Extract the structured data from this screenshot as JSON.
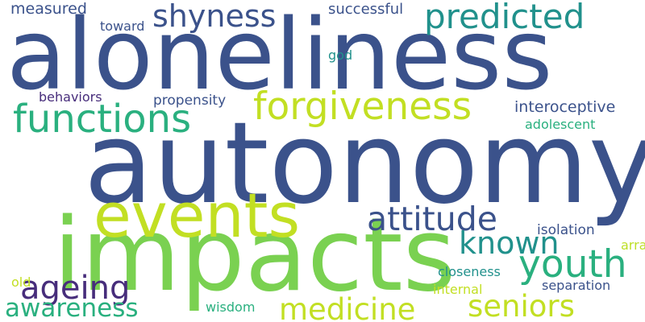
{
  "palette": {
    "indigo": "#3b528b",
    "purple": "#472d7b",
    "teal": "#21918c",
    "green": "#2ab07f",
    "lime": "#7ad151",
    "yellow": "#c2df23",
    "light_yellow": "#bddf26"
  },
  "words": {
    "aloneliness": "aloneliness",
    "autonomy": "autonomy",
    "impacts": "impacts",
    "events": "events",
    "forgiveness": "forgiveness",
    "functions": "functions",
    "predicted": "predicted",
    "shyness": "shyness",
    "attitude": "attitude",
    "youth": "youth",
    "known": "known",
    "ageing": "ageing",
    "medicine": "medicine",
    "seniors": "seniors",
    "awareness": "awareness",
    "measured": "measured",
    "toward": "toward",
    "successful": "successful",
    "god": "god",
    "behaviors": "behaviors",
    "propensity": "propensity",
    "interoceptive": "interoceptive",
    "adolescent": "adolescent",
    "arrangement": "arrangement",
    "isolation": "isolation",
    "closeness": "closeness",
    "separation": "separation",
    "internal": "internal",
    "old": "old",
    "wisdom": "wisdom"
  }
}
